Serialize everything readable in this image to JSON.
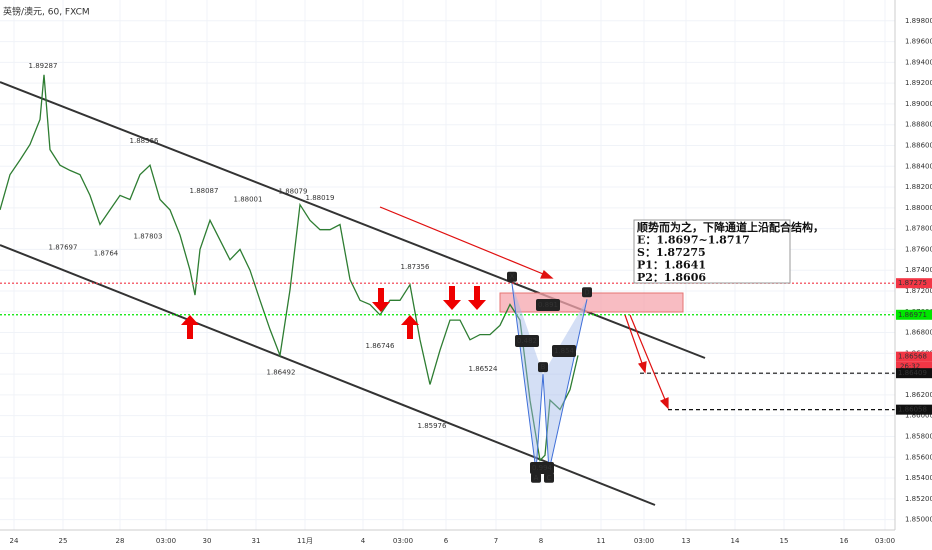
{
  "header": {
    "title": "英镑/澳元, 60, FXCM"
  },
  "chart_data": {
    "type": "line",
    "color": "#2e7d32",
    "xlim": [
      0,
      89.5
    ],
    "ylim": [
      1.849,
      1.9
    ],
    "grid": true,
    "xticks": [
      {
        "value": 1.4,
        "label": "24"
      },
      {
        "value": 6.3,
        "label": "25"
      },
      {
        "value": 12.0,
        "label": "28"
      },
      {
        "value": 16.6,
        "label": "03:00"
      },
      {
        "value": 20.7,
        "label": "30"
      },
      {
        "value": 25.6,
        "label": "31"
      },
      {
        "value": 30.5,
        "label": "11月"
      },
      {
        "value": 36.3,
        "label": "4"
      },
      {
        "value": 40.3,
        "label": "03:00"
      },
      {
        "value": 44.6,
        "label": "6"
      },
      {
        "value": 49.6,
        "label": "7"
      },
      {
        "value": 54.1,
        "label": "8"
      },
      {
        "value": 60.1,
        "label": "11"
      },
      {
        "value": 64.4,
        "label": "03:00"
      },
      {
        "value": 68.6,
        "label": "13"
      },
      {
        "value": 73.5,
        "label": "14"
      },
      {
        "value": 78.4,
        "label": "15"
      },
      {
        "value": 84.4,
        "label": "16"
      },
      {
        "value": 88.5,
        "label": "03:00"
      }
    ],
    "yticks": [
      {
        "value": 1.85,
        "label": "1.85000"
      },
      {
        "value": 1.852,
        "label": "1.85200"
      },
      {
        "value": 1.854,
        "label": "1.85400"
      },
      {
        "value": 1.856,
        "label": "1.85600"
      },
      {
        "value": 1.858,
        "label": "1.85800"
      },
      {
        "value": 1.86,
        "label": "1.86000"
      },
      {
        "value": 1.862,
        "label": "1.86200"
      },
      {
        "value": 1.864,
        "label": "1.86400"
      },
      {
        "value": 1.866,
        "label": "1.86600"
      },
      {
        "value": 1.868,
        "label": "1.86800"
      },
      {
        "value": 1.87,
        "label": "1.87000"
      },
      {
        "value": 1.872,
        "label": "1.87200"
      },
      {
        "value": 1.874,
        "label": "1.87400"
      },
      {
        "value": 1.876,
        "label": "1.87600"
      },
      {
        "value": 1.878,
        "label": "1.87800"
      },
      {
        "value": 1.88,
        "label": "1.88000"
      },
      {
        "value": 1.882,
        "label": "1.88200"
      },
      {
        "value": 1.884,
        "label": "1.88400"
      },
      {
        "value": 1.886,
        "label": "1.88600"
      },
      {
        "value": 1.888,
        "label": "1.88800"
      },
      {
        "value": 1.89,
        "label": "1.89000"
      },
      {
        "value": 1.892,
        "label": "1.89200"
      },
      {
        "value": 1.894,
        "label": "1.89400"
      },
      {
        "value": 1.896,
        "label": "1.89600"
      },
      {
        "value": 1.898,
        "label": "1.89800"
      }
    ],
    "x": [
      0,
      1,
      2,
      3,
      4,
      4.4,
      5,
      6,
      7,
      8,
      9,
      10,
      11,
      12,
      13,
      14,
      15,
      16,
      17,
      18,
      19,
      19.5,
      20,
      21,
      22,
      23,
      24,
      25,
      26,
      27,
      28,
      29,
      30,
      31,
      32,
      33,
      34,
      35,
      36,
      37,
      38,
      39,
      40,
      41,
      42,
      43,
      44,
      45,
      46,
      47,
      48,
      49,
      50,
      51,
      52,
      53,
      54,
      54.5,
      55,
      56,
      57,
      57.8
    ],
    "values": [
      1.8798,
      1.8832,
      1.8846,
      1.8861,
      1.8885,
      1.8928,
      1.8856,
      1.8841,
      1.8836,
      1.8832,
      1.8812,
      1.8784,
      1.8798,
      1.8812,
      1.8808,
      1.8832,
      1.8841,
      1.8808,
      1.8798,
      1.8774,
      1.874,
      1.8716,
      1.876,
      1.8788,
      1.8769,
      1.875,
      1.876,
      1.874,
      1.8711,
      1.8683,
      1.8658,
      1.8721,
      1.8803,
      1.8788,
      1.8779,
      1.8779,
      1.8784,
      1.8731,
      1.8711,
      1.8707,
      1.8697,
      1.8711,
      1.8711,
      1.8726,
      1.8673,
      1.863,
      1.8663,
      1.8692,
      1.8692,
      1.8673,
      1.8678,
      1.8678,
      1.8687,
      1.8707,
      1.8692,
      1.8615,
      1.8557,
      1.8562,
      1.8615,
      1.8606,
      1.8625,
      1.8658
    ],
    "price_labels": [
      {
        "x": 4.3,
        "value": 1.89287
      },
      {
        "x": 6.3,
        "value": 1.87697
      },
      {
        "x": 10.6,
        "value": 1.8764
      },
      {
        "x": 14.8,
        "value": 1.87803
      },
      {
        "x": 14.4,
        "value": 1.88566
      },
      {
        "x": 20.4,
        "value": 1.88087
      },
      {
        "x": 24.8,
        "value": 1.88001
      },
      {
        "x": 29.3,
        "value": 1.88079
      },
      {
        "x": 32.0,
        "value": 1.88019
      },
      {
        "x": 28.1,
        "value": 1.86492
      },
      {
        "x": 41.5,
        "value": 1.87356
      },
      {
        "x": 38.0,
        "value": 1.86746
      },
      {
        "x": 48.3,
        "value": 1.86524
      },
      {
        "x": 43.2,
        "value": 1.85976
      }
    ],
    "levels": [
      {
        "value": 1.87275,
        "color": "#f23645",
        "style": "dotted"
      },
      {
        "value": 1.86971,
        "color": "#00e600",
        "style": "dotted"
      },
      {
        "value": 1.86568,
        "color": "#f23645",
        "style": "none"
      },
      {
        "value": 1.86409,
        "color": "#111111",
        "style": "dashed"
      },
      {
        "value": 1.86058,
        "color": "#111111",
        "style": "dashed"
      }
    ],
    "countdown": "26:32",
    "pattern": {
      "points": [
        {
          "label": "X",
          "x": 51.2,
          "value": 1.8727
        },
        {
          "label": "A",
          "x": 53.6,
          "value": 1.8547
        },
        {
          "label": "B",
          "x": 54.3,
          "value": 1.864
        },
        {
          "label": "C",
          "x": 54.9,
          "value": 1.8547
        },
        {
          "label": "D",
          "x": 58.7,
          "value": 1.8712
        }
      ],
      "ratios": [
        0.891,
        0.482,
        1.854,
        0.994
      ]
    },
    "note": [
      "顺势而为之，下降通道上沿配合结构，",
      "E：1.8697~1.8717",
      "S：1.87275",
      "P1：1.8641",
      "P2：1.8606"
    ]
  }
}
